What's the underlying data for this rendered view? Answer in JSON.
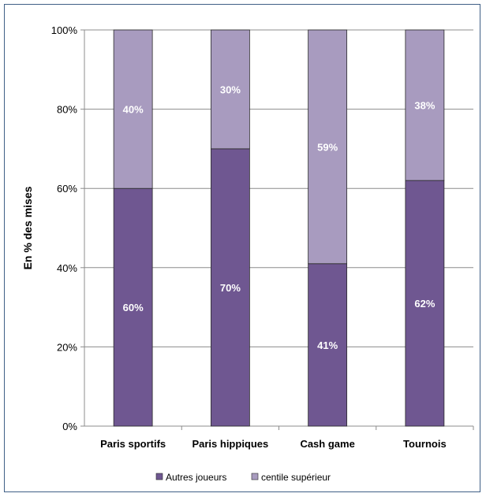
{
  "chart_data": {
    "type": "bar",
    "stacked": true,
    "title": "",
    "xlabel": "",
    "ylabel": "En % des mises",
    "ylim": [
      0,
      100
    ],
    "yticks": [
      "0%",
      "20%",
      "40%",
      "60%",
      "80%",
      "100%"
    ],
    "categories": [
      "Paris sportifs",
      "Paris hippiques",
      "Cash game",
      "Tournois"
    ],
    "series": [
      {
        "name": "Autres joueurs",
        "color": "#6f5791",
        "values": [
          60,
          70,
          41,
          62
        ],
        "labels": [
          "60%",
          "70%",
          "41%",
          "62%"
        ]
      },
      {
        "name": "centile supérieur",
        "color": "#a89bbf",
        "values": [
          40,
          30,
          59,
          38
        ],
        "labels": [
          "40%",
          "30%",
          "59%",
          "38%"
        ]
      }
    ],
    "grid": true,
    "legend_position": "bottom"
  }
}
